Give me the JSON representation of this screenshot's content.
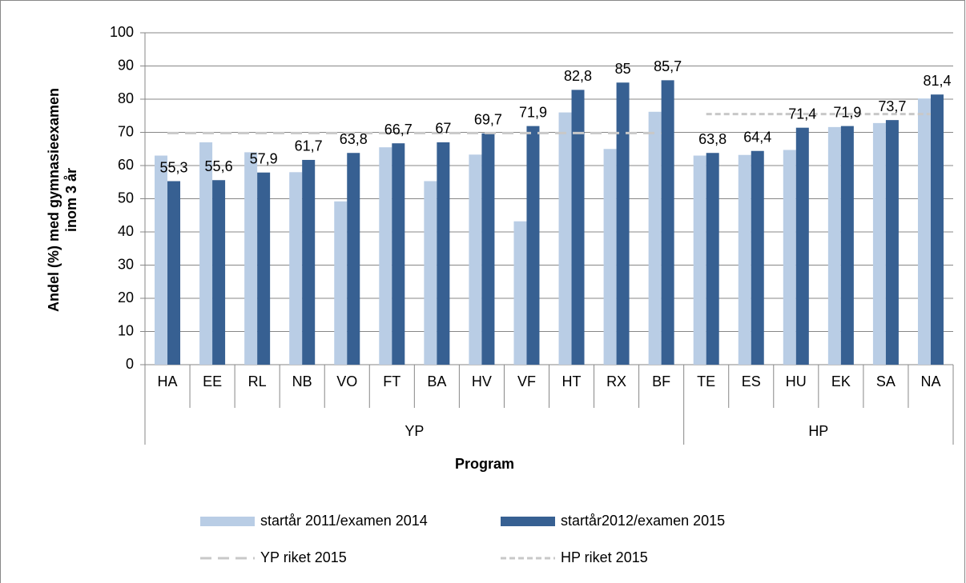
{
  "chart_data": {
    "type": "bar",
    "ylabel": [
      "Andel (%) med gymnasieexamen",
      "inom 3 år"
    ],
    "xlabel": "Program",
    "categories": [
      "HA",
      "EE",
      "RL",
      "NB",
      "VO",
      "FT",
      "BA",
      "HV",
      "VF",
      "HT",
      "RX",
      "BF",
      "TE",
      "ES",
      "HU",
      "EK",
      "SA",
      "NA"
    ],
    "groups": [
      {
        "label": "YP",
        "count": 12
      },
      {
        "label": "HP",
        "count": 6
      }
    ],
    "series": [
      {
        "name": "startår 2011/examen 2014",
        "color": "#b9cde5",
        "values": [
          63,
          67,
          64,
          58,
          49.2,
          65.5,
          55.3,
          63.3,
          43.2,
          76,
          65,
          76.2,
          63,
          63.2,
          64.7,
          71.6,
          72.8,
          80.2
        ]
      },
      {
        "name": "startår2012/examen 2015",
        "color": "#376092",
        "values": [
          55.3,
          55.6,
          57.9,
          61.7,
          63.8,
          66.7,
          67,
          69.7,
          71.9,
          82.8,
          85,
          85.7,
          63.8,
          64.4,
          71.4,
          71.9,
          73.7,
          81.4
        ],
        "value_labels": [
          "55,3",
          "55,6",
          "57,9",
          "61,7",
          "63,8",
          "66,7",
          "67",
          "69,7",
          "71,9",
          "82,8",
          "85",
          "85,7",
          "63,8",
          "64,4",
          "71,4",
          "71,9",
          "73,7",
          "81,4"
        ]
      },
      {
        "name": "YP riket 2015",
        "type": "line",
        "color": "#c8c8c8",
        "dash": "long",
        "values": [
          69.8,
          69.8,
          69.8,
          69.8,
          69.8,
          69.8,
          69.8,
          69.8,
          69.8,
          69.8,
          69.8,
          69.8,
          null,
          null,
          null,
          null,
          null,
          null
        ]
      },
      {
        "name": "HP riket 2015",
        "type": "line",
        "color": "#c8c8c8",
        "dash": "short",
        "values": [
          null,
          null,
          null,
          null,
          null,
          null,
          null,
          null,
          null,
          null,
          null,
          null,
          75.5,
          75.5,
          75.5,
          75.5,
          75.5,
          75.5
        ]
      }
    ],
    "ylim": [
      0,
      100
    ],
    "yticks": [
      0,
      10,
      20,
      30,
      40,
      50,
      60,
      70,
      80,
      90,
      100
    ],
    "grid": true
  }
}
